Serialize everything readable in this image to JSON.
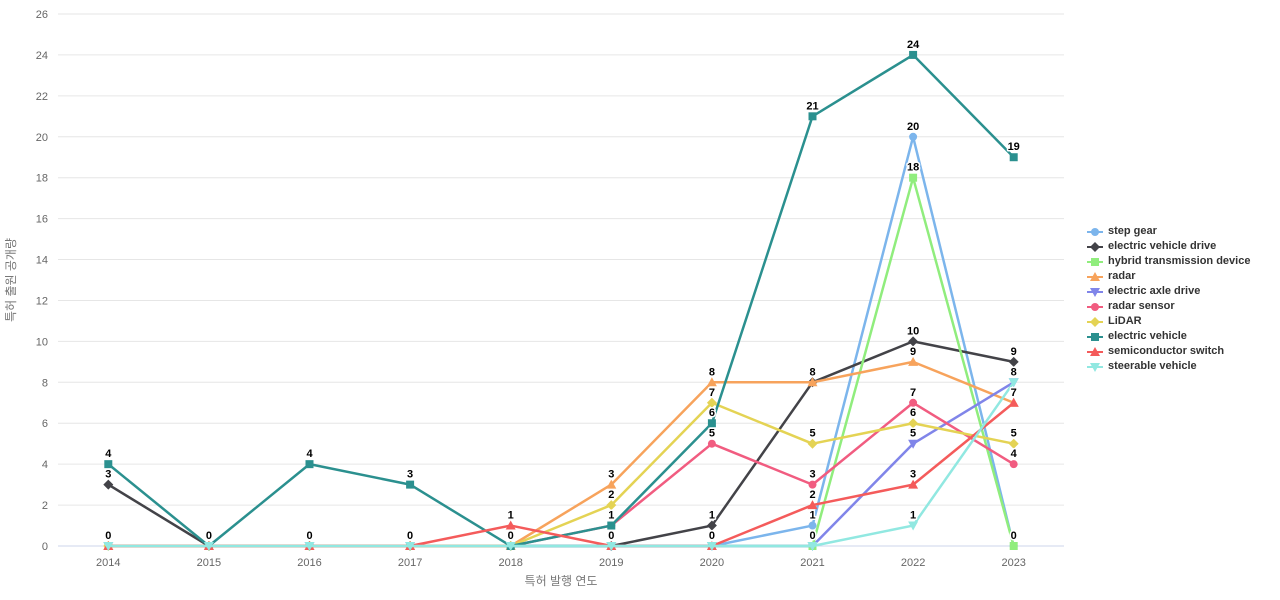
{
  "chart_data": {
    "type": "line",
    "title": "",
    "xlabel": "특허 발행 연도",
    "ylabel": "특허 출원 공개량",
    "x": [
      2014,
      2015,
      2016,
      2017,
      2018,
      2019,
      2020,
      2021,
      2022,
      2023
    ],
    "ylim": [
      0,
      26
    ],
    "ytick_step": 2,
    "grid": true,
    "legend_position": "right",
    "axis_line_color": "#ccd6eb",
    "grid_color": "#e6e6e6",
    "series": [
      {
        "name": "step gear",
        "color": "#7cb5ec",
        "symbol": "circle",
        "values": [
          0,
          0,
          0,
          0,
          0,
          0,
          0,
          1,
          20,
          0
        ]
      },
      {
        "name": "electric vehicle drive",
        "color": "#434348",
        "symbol": "diamond",
        "values": [
          3,
          0,
          0,
          0,
          0,
          0,
          1,
          8,
          10,
          9
        ]
      },
      {
        "name": "hybrid transmission device",
        "color": "#90ed7d",
        "symbol": "square",
        "values": [
          0,
          0,
          0,
          0,
          0,
          0,
          0,
          0,
          18,
          0
        ]
      },
      {
        "name": "radar",
        "color": "#f7a35c",
        "symbol": "triangle",
        "values": [
          0,
          0,
          0,
          0,
          0,
          3,
          8,
          8,
          9,
          7
        ]
      },
      {
        "name": "electric axle drive",
        "color": "#8085e9",
        "symbol": "triangle-down",
        "values": [
          0,
          0,
          0,
          0,
          0,
          0,
          0,
          0,
          5,
          8
        ]
      },
      {
        "name": "radar sensor",
        "color": "#f15c80",
        "symbol": "circle",
        "values": [
          0,
          0,
          0,
          0,
          0,
          1,
          5,
          3,
          7,
          4
        ]
      },
      {
        "name": "LiDAR",
        "color": "#e4d354",
        "symbol": "diamond",
        "values": [
          0,
          0,
          0,
          0,
          0,
          2,
          7,
          5,
          6,
          5
        ]
      },
      {
        "name": "electric vehicle",
        "color": "#2b908f",
        "symbol": "square",
        "values": [
          4,
          0,
          4,
          3,
          0,
          1,
          6,
          21,
          24,
          19
        ]
      },
      {
        "name": "semiconductor switch",
        "color": "#f45b5b",
        "symbol": "triangle",
        "values": [
          0,
          0,
          0,
          0,
          1,
          0,
          0,
          2,
          3,
          7
        ]
      },
      {
        "name": "steerable vehicle",
        "color": "#91e8e1",
        "symbol": "triangle-down",
        "values": [
          0,
          0,
          0,
          0,
          0,
          0,
          0,
          0,
          1,
          8
        ]
      }
    ]
  }
}
